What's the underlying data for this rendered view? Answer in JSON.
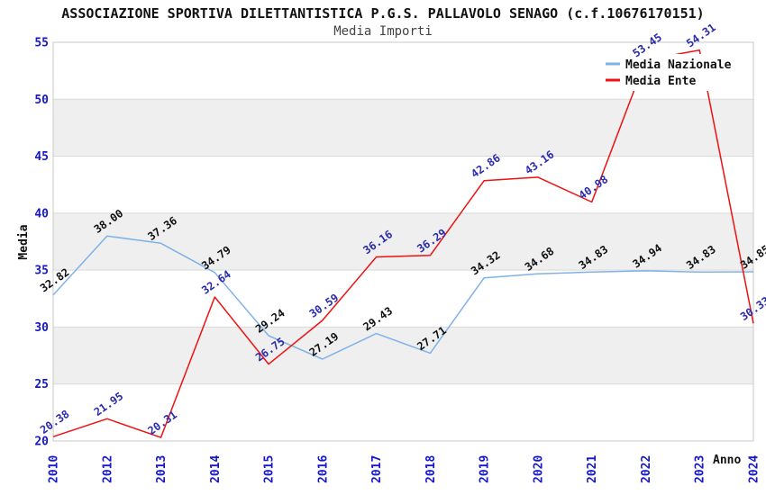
{
  "title": "ASSOCIAZIONE SPORTIVA DILETTANTISTICA P.G.S. PALLAVOLO SENAGO (c.f.10676170151)",
  "subtitle": "Media Importi",
  "chart_data": {
    "type": "line",
    "categories": [
      "2010",
      "2012",
      "2013",
      "2014",
      "2015",
      "2016",
      "2017",
      "2018",
      "2019",
      "2020",
      "2021",
      "2022",
      "2023",
      "2024"
    ],
    "series": [
      {
        "name": "Media Nazionale",
        "color": "#7EB2E8",
        "label_color": "#111111",
        "values": [
          32.82,
          38.0,
          37.36,
          34.79,
          29.24,
          27.19,
          29.43,
          27.71,
          34.32,
          34.68,
          34.83,
          34.94,
          34.83,
          34.85
        ]
      },
      {
        "name": "Media Ente",
        "color": "#EE1111",
        "label_color": "#2B2BAD",
        "values": [
          20.38,
          21.95,
          20.31,
          32.64,
          26.75,
          30.59,
          36.16,
          36.29,
          42.86,
          43.16,
          40.98,
          53.45,
          54.31,
          30.33
        ]
      }
    ],
    "xlabel": "Anno",
    "ylabel": "Media",
    "ylim": [
      20,
      55
    ],
    "yticks": [
      20,
      25,
      30,
      35,
      40,
      45,
      50,
      55
    ],
    "grid": "horizontal-with-alternating-bands",
    "legend_position": "top-right",
    "value_decimals": 2
  },
  "colors": {
    "axis_tick_label": "#1616CC",
    "band_fill": "#EFEFEF",
    "gridline": "#D9D9D9",
    "plot_border": "#C9C9C9",
    "background": "#FFFFFF"
  }
}
